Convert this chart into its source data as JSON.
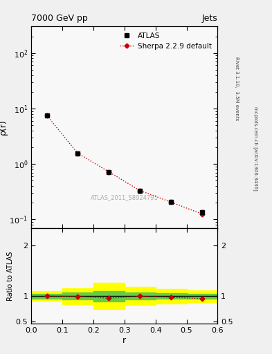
{
  "title_left": "7000 GeV pp",
  "title_right": "Jets",
  "ylabel_main": "ρ(r)",
  "ylabel_ratio": "Ratio to ATLAS",
  "xlabel": "r",
  "right_label_top": "Rivet 3.1.10,  3.5M events",
  "right_label_bottom": "mcplots.cern.ch [arXiv:1306.3436]",
  "watermark": "ATLAS_2011_S8924791",
  "atlas_x": [
    0.05,
    0.15,
    0.25,
    0.35,
    0.45,
    0.55
  ],
  "atlas_y": [
    7.5,
    1.55,
    0.72,
    0.33,
    0.205,
    0.135
  ],
  "atlas_yerr": [
    0.25,
    0.06,
    0.03,
    0.02,
    0.012,
    0.01
  ],
  "sherpa_x": [
    0.05,
    0.15,
    0.25,
    0.35,
    0.45,
    0.55
  ],
  "sherpa_y": [
    7.5,
    1.55,
    0.72,
    0.33,
    0.205,
    0.125
  ],
  "ratio_x": [
    0.05,
    0.15,
    0.25,
    0.35,
    0.45,
    0.55
  ],
  "ratio_y": [
    1.005,
    0.995,
    0.96,
    0.998,
    0.978,
    0.952
  ],
  "ratio_yerr": [
    0.01,
    0.015,
    0.02,
    0.015,
    0.018,
    0.022
  ],
  "bin_edges": [
    0.0,
    0.1,
    0.2,
    0.3,
    0.4,
    0.5,
    0.6
  ],
  "green_lo": [
    0.955,
    0.93,
    0.895,
    0.93,
    0.945,
    0.95
  ],
  "green_hi": [
    1.045,
    1.07,
    1.105,
    1.07,
    1.055,
    1.05
  ],
  "yellow_lo": [
    0.905,
    0.84,
    0.74,
    0.82,
    0.86,
    0.88
  ],
  "yellow_hi": [
    1.095,
    1.16,
    1.26,
    1.18,
    1.14,
    1.12
  ],
  "atlas_color": "#000000",
  "sherpa_color": "#cc0000",
  "background_color": "#f8f8f8",
  "ylim_main": [
    0.07,
    300
  ],
  "ylim_ratio": [
    0.45,
    2.35
  ],
  "xlim": [
    0.0,
    0.6
  ],
  "legend_atlas": "ATLAS",
  "legend_sherpa": "Sherpa 2.2.9 default"
}
